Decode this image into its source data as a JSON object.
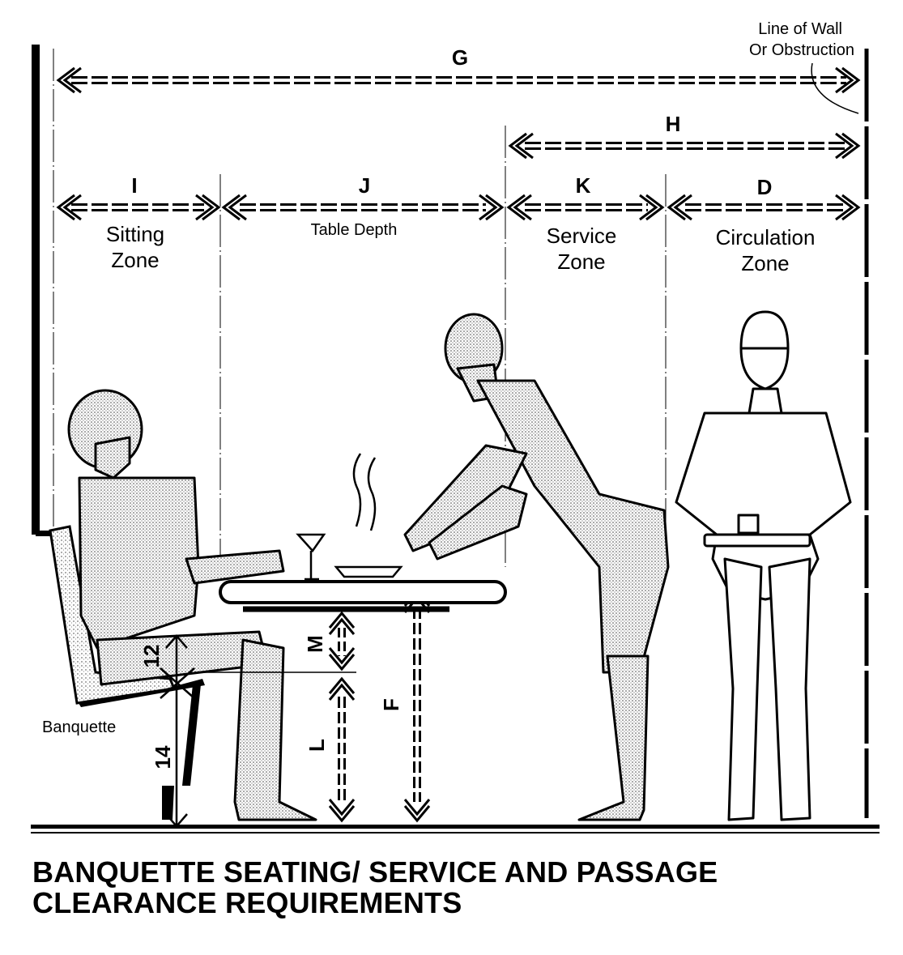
{
  "labels": {
    "wall_line_1": "Line of Wall",
    "wall_line_2": "Or Obstruction",
    "G": "G",
    "H": "H",
    "I": "I",
    "J": "J",
    "K": "K",
    "D": "D",
    "M": "M",
    "L": "L",
    "F": "F",
    "dim_12": "12",
    "dim_14": "14",
    "sitting_zone_1": "Sitting",
    "sitting_zone_2": "Zone",
    "table_depth": "Table Depth",
    "service_zone_1": "Service",
    "service_zone_2": "Zone",
    "circulation_zone_1": "Circulation",
    "circulation_zone_2": "Zone",
    "banquette": "Banquette"
  },
  "caption": {
    "line1": "BANQUETTE SEATING/ SERVICE AND PASSAGE",
    "line2": "CLEARANCE REQUIREMENTS"
  }
}
